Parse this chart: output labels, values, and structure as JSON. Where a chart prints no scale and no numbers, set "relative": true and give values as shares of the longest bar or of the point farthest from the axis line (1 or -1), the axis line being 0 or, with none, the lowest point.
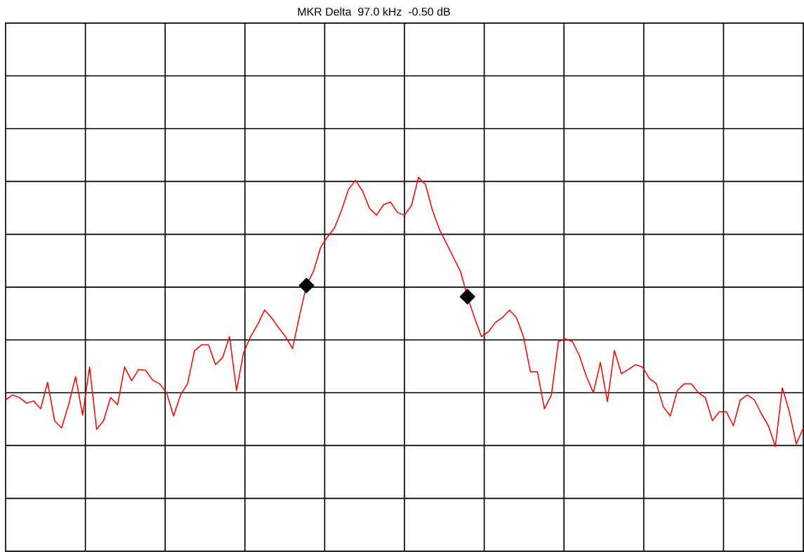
{
  "chart_data": {
    "type": "line",
    "title": "MKR Delta  97.0 kHz  -0.50 dB",
    "relative": true,
    "grid": true,
    "tick_labels": false,
    "categories": [
      null,
      null,
      null,
      null,
      null,
      null,
      null,
      null,
      null,
      null,
      null,
      null,
      null,
      null,
      null,
      null,
      null,
      null,
      null,
      null,
      null,
      null,
      null,
      null,
      null,
      null,
      null,
      null,
      null,
      null,
      null,
      null,
      null,
      null,
      null,
      null,
      null,
      null,
      null,
      null,
      null,
      null,
      null,
      null,
      null,
      null,
      null,
      null,
      null,
      null,
      null,
      null,
      null,
      null,
      null,
      null,
      null,
      null,
      null,
      null,
      null,
      null,
      null,
      null,
      null,
      null,
      null,
      null,
      null,
      null,
      null,
      null,
      null,
      null,
      null,
      null,
      null,
      null,
      null,
      null,
      null,
      null,
      null,
      null,
      null,
      null,
      null,
      null,
      null,
      null,
      null,
      null,
      null,
      null,
      null,
      null,
      null,
      null,
      null,
      null,
      null,
      null,
      null,
      null,
      null,
      null,
      null,
      null,
      null,
      null,
      null,
      null,
      null,
      null,
      null
    ],
    "series": [
      {
        "color": "#ff0000",
        "marker": "none",
        "values": [
          0.405,
          0.418,
          0.411,
          0.396,
          0.402,
          0.381,
          0.452,
          0.349,
          0.33,
          0.392,
          0.467,
          0.364,
          0.493,
          0.326,
          0.349,
          0.411,
          0.392,
          0.493,
          0.456,
          0.486,
          0.484,
          0.458,
          0.448,
          0.424,
          0.362,
          0.418,
          0.448,
          0.537,
          0.552,
          0.552,
          0.499,
          0.518,
          0.574,
          0.43,
          0.531,
          0.574,
          0.606,
          0.645,
          0.625,
          0.598,
          0.574,
          0.542,
          0.63,
          0.711,
          0.749,
          0.812,
          0.841,
          0.865,
          0.912,
          0.968,
          0.992,
          0.964,
          0.917,
          0.899,
          0.927,
          0.934,
          0.906,
          0.899,
          0.925,
          1.0,
          0.981,
          0.912,
          0.861,
          0.824,
          0.786,
          0.749,
          0.681,
          0.625,
          0.574,
          0.587,
          0.612,
          0.625,
          0.645,
          0.625,
          0.574,
          0.48,
          0.48,
          0.381,
          0.418,
          0.561,
          0.568,
          0.561,
          0.523,
          0.467,
          0.424,
          0.505,
          0.4,
          0.537,
          0.475,
          0.486,
          0.499,
          0.493,
          0.462,
          0.448,
          0.386,
          0.362,
          0.43,
          0.448,
          0.448,
          0.424,
          0.411,
          0.349,
          0.373,
          0.373,
          0.336,
          0.405,
          0.418,
          0.405,
          0.368,
          0.336,
          0.28,
          0.437,
          0.373,
          0.287,
          0.33
        ]
      }
    ]
  }
}
